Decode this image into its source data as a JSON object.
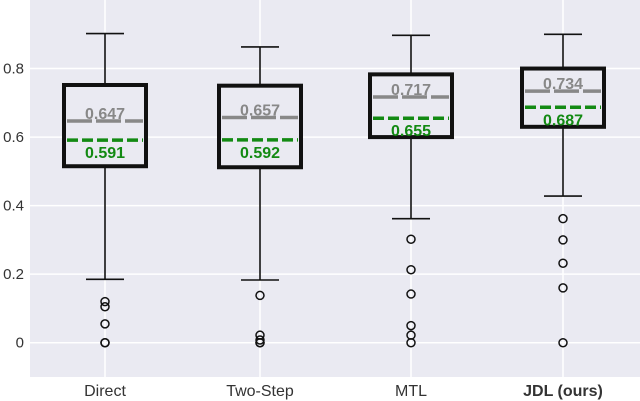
{
  "chart_data": {
    "type": "box",
    "title": "",
    "xlabel": "",
    "ylabel": "",
    "ylim": [
      -0.1,
      1.0
    ],
    "yticks": [
      0,
      0.2,
      0.4,
      0.6,
      0.8
    ],
    "ytick_labels": [
      "0",
      "0.2",
      "0.4",
      "0.6",
      "0.8"
    ],
    "grid": true,
    "background": "#eaeaf2",
    "colors": {
      "box": "#111111",
      "whisker": "#111111",
      "median_line": "#888888",
      "median_label": "#888888",
      "mean_line": "#138a13",
      "mean_label": "#138a13",
      "outlier_edge": "#111111",
      "grid": "#ffffff"
    },
    "categories": [
      {
        "label": "Direct",
        "bold": false
      },
      {
        "label": "Two-Step",
        "bold": false
      },
      {
        "label": "MTL",
        "bold": false
      },
      {
        "label": "JDL (ours)",
        "bold": true
      }
    ],
    "boxes": [
      {
        "whislo": 0.185,
        "q1": 0.515,
        "median": 0.647,
        "mean": 0.591,
        "q3": 0.752,
        "whishi": 0.902,
        "median_label": "0.647",
        "mean_label": "0.591",
        "fliers": [
          0.12,
          0.105,
          0.055,
          0.0,
          0.0
        ]
      },
      {
        "whislo": 0.183,
        "q1": 0.512,
        "median": 0.657,
        "mean": 0.592,
        "q3": 0.75,
        "whishi": 0.863,
        "median_label": "0.657",
        "mean_label": "0.592",
        "fliers": [
          0.138,
          0.022,
          0.008,
          0.0,
          0.0
        ]
      },
      {
        "whislo": 0.362,
        "q1": 0.6,
        "median": 0.717,
        "mean": 0.655,
        "q3": 0.783,
        "whishi": 0.897,
        "median_label": "0.717",
        "mean_label": "0.655",
        "fliers": [
          0.302,
          0.213,
          0.142,
          0.05,
          0.022,
          0.0
        ]
      },
      {
        "whislo": 0.428,
        "q1": 0.63,
        "median": 0.734,
        "mean": 0.687,
        "q3": 0.8,
        "whishi": 0.9,
        "median_label": "0.734",
        "mean_label": "0.687",
        "fliers": [
          0.362,
          0.3,
          0.232,
          0.16,
          0.0
        ]
      }
    ]
  }
}
